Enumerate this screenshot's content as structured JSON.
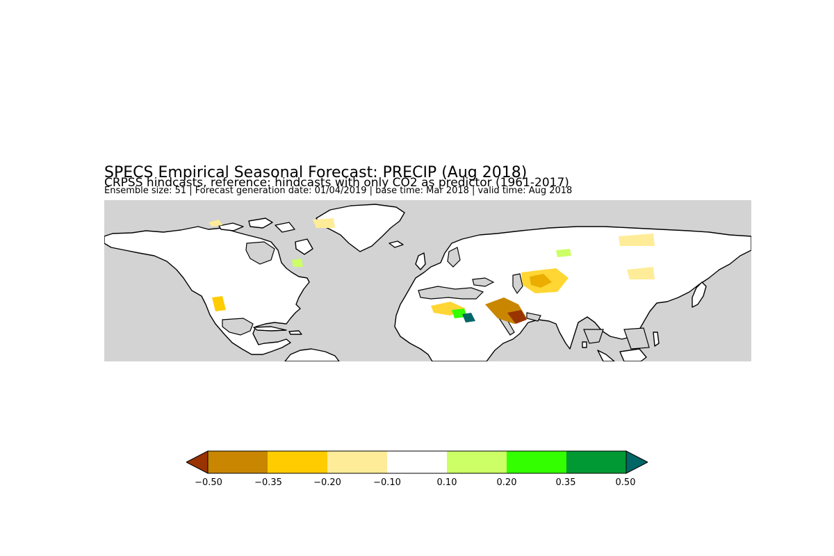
{
  "title": "SPECS Empirical Seasonal Forecast: PRECIP (Aug 2018)",
  "subtitle": "CRPSS hindcasts, reference: hindcasts with only CO2 as predictor (1961-2017)",
  "info": "Ensemble size: 51 | Forecast generation date: 01/04/2019 | base time: Mar 2018 | valid time: Aug 2018",
  "map": {
    "ocean_color": "#d3d3d3",
    "land_color": "#ffffff",
    "coast_color": "#000000"
  },
  "colorbar": {
    "ticks": [
      "−0.50",
      "−0.35",
      "−0.20",
      "−0.10",
      "0.10",
      "0.20",
      "0.35",
      "0.50"
    ],
    "colors": [
      "#c98600",
      "#ffcc00",
      "#ffec99",
      "#ffffff",
      "#ccff66",
      "#33ff00",
      "#009933"
    ],
    "under_color": "#993300",
    "over_color": "#006666"
  }
}
